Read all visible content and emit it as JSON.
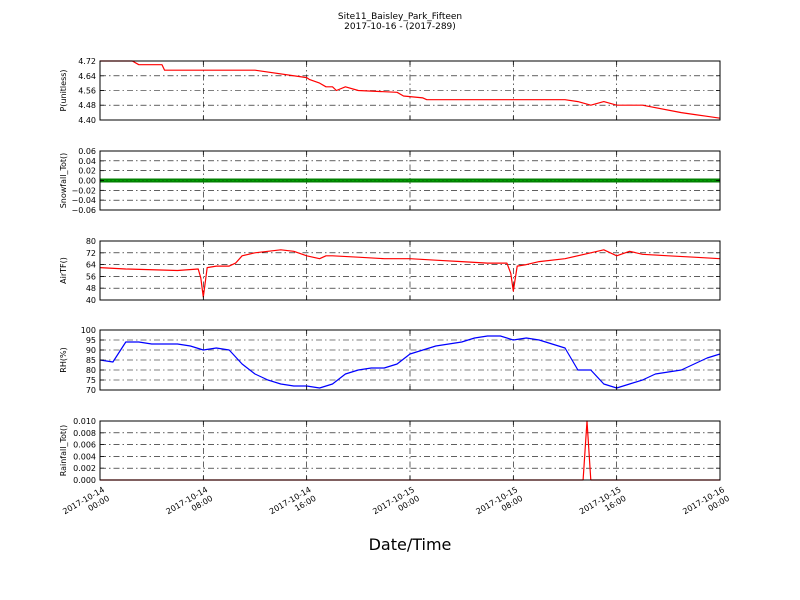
{
  "figure": {
    "title_line1": "Site11_Baisley_Park_Fifteen",
    "title_line2": "2017-10-16 - (2017-289)",
    "xlabel": "Date/Time"
  },
  "x_ticks": [
    {
      "line1": "2017-10-14",
      "line2": "00:00",
      "hour": 0
    },
    {
      "line1": "2017-10-14",
      "line2": "08:00",
      "hour": 8
    },
    {
      "line1": "2017-10-14",
      "line2": "16:00",
      "hour": 16
    },
    {
      "line1": "2017-10-15",
      "line2": "00:00",
      "hour": 24
    },
    {
      "line1": "2017-10-15",
      "line2": "08:00",
      "hour": 32
    },
    {
      "line1": "2017-10-15",
      "line2": "16:00",
      "hour": 40
    },
    {
      "line1": "2017-10-16",
      "line2": "00:00",
      "hour": 48
    }
  ],
  "chart_data": [
    {
      "type": "line",
      "ylabel": "P(unitless)",
      "ylim": [
        4.4,
        4.72
      ],
      "yticks": [
        "4.40",
        "4.48",
        "4.56",
        "4.64",
        "4.72"
      ],
      "ytick_values": [
        4.4,
        4.48,
        4.56,
        4.64,
        4.72
      ],
      "grid": true,
      "color": "#ff0000",
      "x_hours": [
        0,
        2.5,
        3,
        4.8,
        5,
        7,
        12,
        16,
        16.2,
        17,
        17.5,
        18,
        18.3,
        19,
        20,
        23,
        23.5,
        25,
        25.3,
        27,
        29,
        36,
        37,
        38,
        39,
        40,
        42,
        45,
        46,
        47,
        48
      ],
      "values": [
        4.72,
        4.72,
        4.7,
        4.7,
        4.67,
        4.67,
        4.67,
        4.63,
        4.62,
        4.6,
        4.58,
        4.58,
        4.56,
        4.58,
        4.56,
        4.55,
        4.53,
        4.52,
        4.51,
        4.51,
        4.51,
        4.51,
        4.5,
        4.48,
        4.5,
        4.48,
        4.48,
        4.44,
        4.43,
        4.42,
        4.41
      ]
    },
    {
      "type": "line",
      "ylabel": "Snowfall_Tot()",
      "ylim": [
        -0.06,
        0.06
      ],
      "yticks": [
        "−0.06",
        "−0.04",
        "−0.02",
        "0.00",
        "0.02",
        "0.04",
        "0.06"
      ],
      "ytick_values": [
        -0.06,
        -0.04,
        -0.02,
        0.0,
        0.02,
        0.04,
        0.06
      ],
      "grid": true,
      "color": "#008000",
      "x_hours": [
        0,
        48
      ],
      "values": [
        0.0,
        0.0
      ]
    },
    {
      "type": "line",
      "ylabel": "AirTF()",
      "ylim": [
        40,
        80
      ],
      "yticks": [
        "40",
        "48",
        "56",
        "64",
        "72",
        "80"
      ],
      "ytick_values": [
        40,
        48,
        56,
        64,
        72,
        80
      ],
      "grid": true,
      "color": "#ff0000",
      "x_hours": [
        0,
        2,
        6,
        7.6,
        7.8,
        8.0,
        8.3,
        9,
        10,
        10.5,
        11,
        12,
        13,
        14,
        15,
        16,
        17,
        17.5,
        18,
        20,
        22,
        24,
        26,
        28,
        30,
        31.5,
        31.8,
        32.0,
        32.3,
        33,
        34,
        36,
        38,
        39,
        40,
        41,
        42,
        44,
        46,
        48
      ],
      "values": [
        62,
        61,
        60,
        61,
        55,
        42,
        62,
        63,
        63,
        65,
        70,
        72,
        73,
        74,
        73,
        70,
        68,
        70,
        70,
        69,
        68,
        68,
        67,
        66,
        65,
        65,
        58,
        46,
        63,
        64,
        66,
        68,
        72,
        74,
        70,
        73,
        71,
        70,
        69,
        68
      ]
    },
    {
      "type": "line",
      "ylabel": "RH(%)",
      "ylim": [
        70,
        100
      ],
      "yticks": [
        "70",
        "75",
        "80",
        "85",
        "90",
        "95",
        "100"
      ],
      "ytick_values": [
        70,
        75,
        80,
        85,
        90,
        95,
        100
      ],
      "grid": true,
      "color": "#0000ff",
      "x_hours": [
        0,
        1,
        2,
        3,
        4,
        5,
        6,
        7,
        8,
        9,
        10,
        11,
        12,
        13,
        14,
        15,
        16,
        17,
        18,
        19,
        20,
        21,
        22,
        23,
        24,
        25,
        26,
        27,
        28,
        29,
        30,
        31,
        32,
        33,
        34,
        35,
        36,
        37,
        38,
        39,
        40,
        41,
        42,
        43,
        44,
        45,
        46,
        47,
        48
      ],
      "values": [
        85,
        84,
        94,
        94,
        93,
        93,
        93,
        92,
        90,
        91,
        90,
        83,
        78,
        75,
        73,
        72,
        72,
        71,
        73,
        78,
        80,
        81,
        81,
        83,
        88,
        90,
        92,
        93,
        94,
        96,
        97,
        97,
        95,
        96,
        95,
        93,
        91,
        80,
        80,
        73,
        71,
        73,
        75,
        78,
        79,
        80,
        83,
        86,
        88
      ]
    },
    {
      "type": "line",
      "ylabel": "Rainfall_Tot()",
      "ylim": [
        0.0,
        0.01
      ],
      "yticks": [
        "0.000",
        "0.002",
        "0.004",
        "0.006",
        "0.008",
        "0.010"
      ],
      "ytick_values": [
        0.0,
        0.002,
        0.004,
        0.006,
        0.008,
        0.01
      ],
      "grid": true,
      "color": "#ff0000",
      "x_hours": [
        0,
        37.4,
        37.7,
        38.0,
        38.3,
        48
      ],
      "values": [
        0.0,
        0.0,
        0.01,
        0.0,
        0.0,
        0.0
      ]
    }
  ]
}
